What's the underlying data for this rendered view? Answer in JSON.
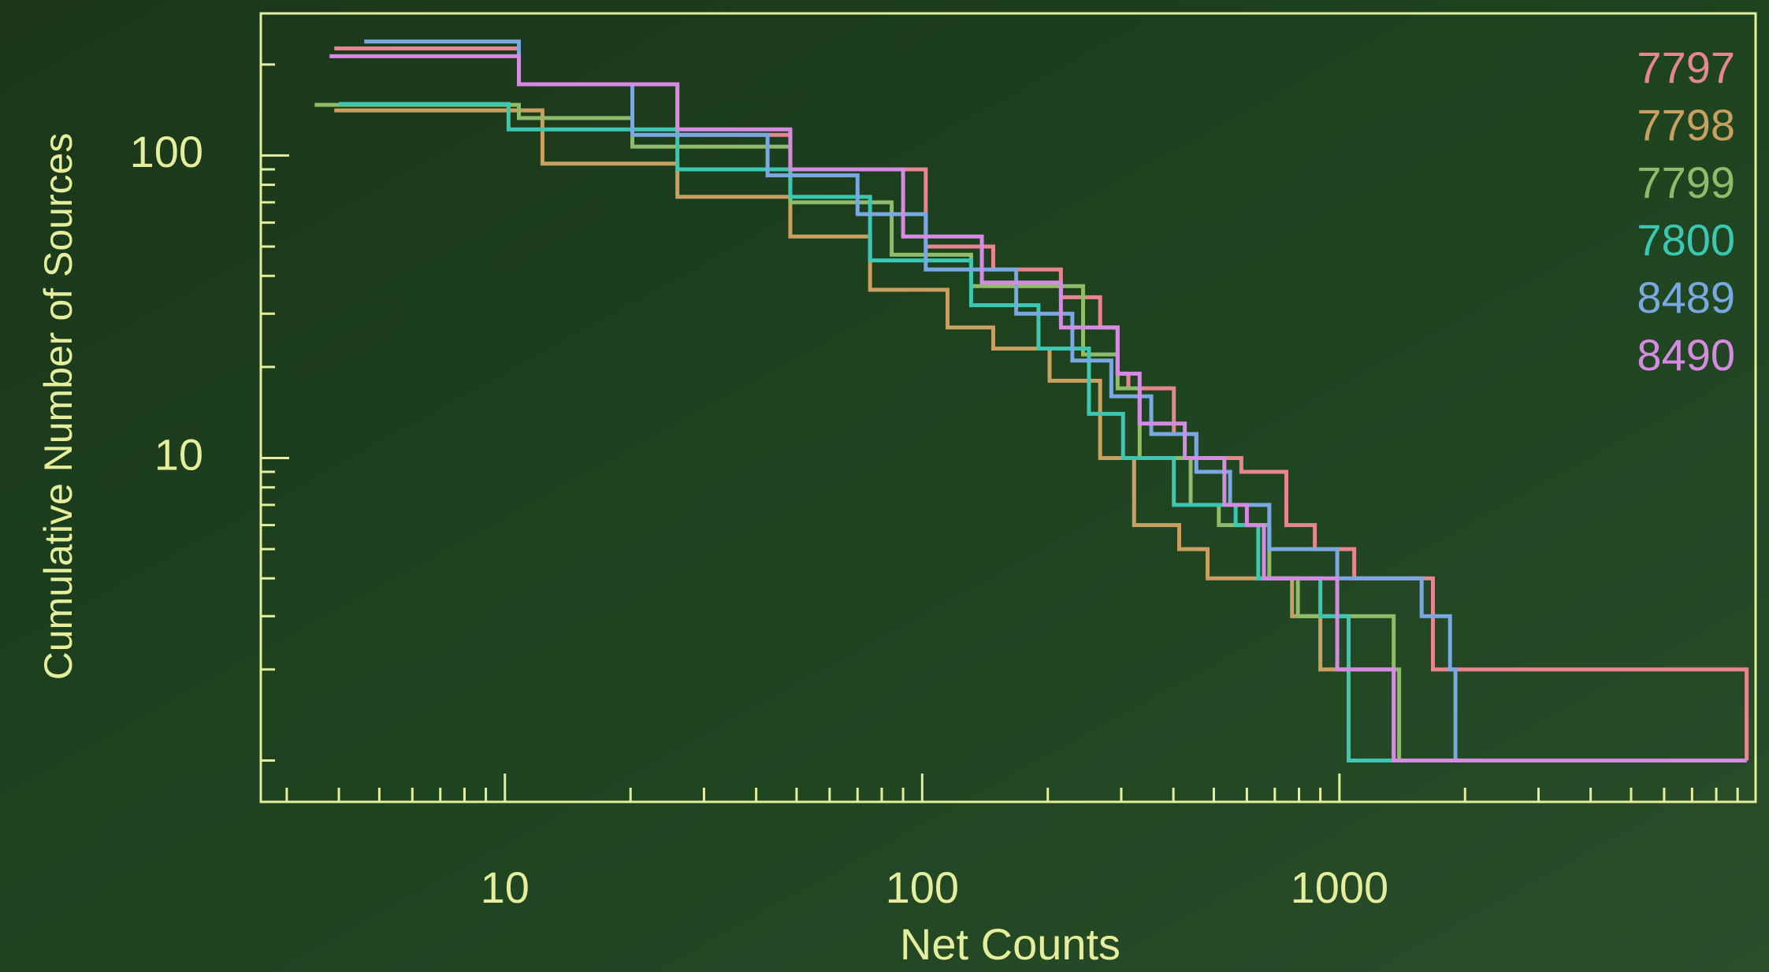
{
  "chart_data": {
    "type": "step",
    "x_label": "Net Counts",
    "y_label": "Cumulative Number of Sources",
    "xscale": "log",
    "yscale": "log",
    "xlim": [
      2.6,
      9940
    ],
    "ylim": [
      0.73,
      295
    ],
    "xticks": [
      10,
      100,
      1000
    ],
    "yticks": [
      10,
      100
    ],
    "xminorticks": [
      3,
      4,
      5,
      6,
      7,
      8,
      9,
      20,
      30,
      40,
      50,
      60,
      70,
      80,
      90,
      200,
      300,
      400,
      500,
      600,
      700,
      800,
      900,
      2000,
      3000,
      4000,
      5000,
      6000,
      7000,
      8000,
      9000
    ],
    "yminorticks": [
      1,
      2,
      3,
      4,
      5,
      6,
      7,
      8,
      9,
      20,
      30,
      40,
      50,
      60,
      70,
      80,
      90,
      200
    ],
    "legend": "upper right",
    "series": [
      {
        "name": "7797",
        "color": "#e8868f",
        "x": [
          3.9,
          10.8,
          25.9,
          48.3,
          102,
          148,
          215,
          267,
          294,
          312,
          401,
          454,
          582,
          746,
          873,
          1085,
          1675,
          9460
        ],
        "values": [
          226,
          172,
          117,
          90,
          50,
          42,
          34,
          27,
          19,
          17,
          12,
          10,
          9,
          6,
          5,
          4,
          2,
          1
        ]
      },
      {
        "name": "7798",
        "color": "#c9a062",
        "x": [
          3.9,
          12.3,
          25.9,
          48.3,
          75,
          115,
          148,
          202,
          267,
          322,
          413,
          483,
          770,
          900,
          1349,
          9460
        ],
        "values": [
          141,
          94,
          73,
          54,
          36,
          27,
          23,
          18,
          10,
          6,
          5,
          4,
          3,
          2,
          1,
          1
        ]
      },
      {
        "name": "7799",
        "color": "#8fbb6a",
        "x": [
          3.5,
          10.8,
          20.2,
          48.3,
          84.5,
          131,
          243,
          294,
          332,
          440,
          514,
          679,
          795,
          1349,
          1390,
          9460
        ],
        "values": [
          147,
          133,
          107,
          70,
          47,
          37,
          22,
          17,
          10,
          7,
          6,
          4,
          3,
          2,
          1,
          1
        ]
      },
      {
        "name": "7800",
        "color": "#3cc7b2",
        "x": [
          4.0,
          10.2,
          25.9,
          48.3,
          75,
          131,
          190,
          251,
          303,
          401,
          564,
          639,
          900,
          1052,
          9460
        ],
        "values": [
          148,
          122,
          90,
          73,
          45,
          32,
          23,
          14,
          10,
          7,
          6,
          4,
          3,
          1,
          1
        ]
      },
      {
        "name": "8489",
        "color": "#7aa9e2",
        "x": [
          4.6,
          10.8,
          20.2,
          42.6,
          70,
          102,
          168,
          229,
          284,
          354,
          454,
          547,
          679,
          988,
          1574,
          1841,
          1897,
          9460
        ],
        "values": [
          238,
          172,
          117,
          86,
          64,
          42,
          30,
          21,
          16,
          12,
          9,
          7,
          5,
          4,
          3,
          2,
          1,
          1
        ]
      },
      {
        "name": "8490",
        "color": "#d58be2",
        "x": [
          3.8,
          10.8,
          25.9,
          48.3,
          90,
          139,
          215,
          294,
          332,
          426,
          530,
          600,
          659,
          988,
          1349,
          9460
        ],
        "values": [
          213,
          172,
          122,
          90,
          54,
          38,
          27,
          19,
          13,
          10,
          7,
          6,
          4,
          2,
          1,
          1
        ]
      }
    ]
  }
}
